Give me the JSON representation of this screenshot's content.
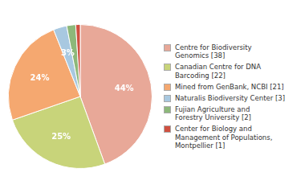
{
  "chart_data": {
    "type": "pie",
    "categories": [
      "Centre for Biodiversity\nGenomics [38]",
      "Canadian Centre for DNA\nBarcoding [22]",
      "Mined from GenBank, NCBI [21]",
      "Naturalis Biodiversity Center [3]",
      "Fujian Agriculture and\nForestry University [2]",
      "Center for Biology and\nManagement of Populations,\nMontpellier [1]"
    ],
    "values": [
      44,
      25,
      24,
      3,
      2,
      1
    ],
    "value_labels": [
      "44%",
      "25%",
      "24%",
      "3%",
      null,
      null
    ],
    "colors": [
      "#e8a898",
      "#c8d47a",
      "#f5a870",
      "#a8c8e0",
      "#8db87a",
      "#d05040"
    ],
    "data_labels": true,
    "legend": "right"
  }
}
